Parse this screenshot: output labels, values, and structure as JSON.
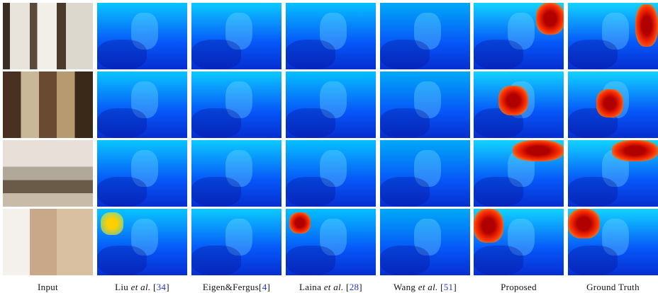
{
  "figure": {
    "columns": [
      [
        {
          "text": "Input",
          "style": "plain"
        }
      ],
      [
        {
          "text": "Liu ",
          "style": "plain"
        },
        {
          "text": "et al.",
          "style": "italic"
        },
        {
          "text": " [",
          "style": "plain"
        },
        {
          "text": "34",
          "style": "cite"
        },
        {
          "text": "]",
          "style": "plain"
        }
      ],
      [
        {
          "text": "Eigen&Fergus[",
          "style": "plain"
        },
        {
          "text": "4",
          "style": "cite"
        },
        {
          "text": "]",
          "style": "plain"
        }
      ],
      [
        {
          "text": "Laina ",
          "style": "plain"
        },
        {
          "text": "et al.",
          "style": "italic"
        },
        {
          "text": " [",
          "style": "plain"
        },
        {
          "text": "28",
          "style": "cite"
        },
        {
          "text": "]",
          "style": "plain"
        }
      ],
      [
        {
          "text": "Wang ",
          "style": "plain"
        },
        {
          "text": "et al.",
          "style": "italic"
        },
        {
          "text": " [",
          "style": "plain"
        },
        {
          "text": "51",
          "style": "cite"
        },
        {
          "text": "]",
          "style": "plain"
        }
      ],
      [
        {
          "text": "Proposed",
          "style": "plain"
        }
      ],
      [
        {
          "text": "Ground Truth",
          "style": "plain"
        }
      ]
    ]
  }
}
